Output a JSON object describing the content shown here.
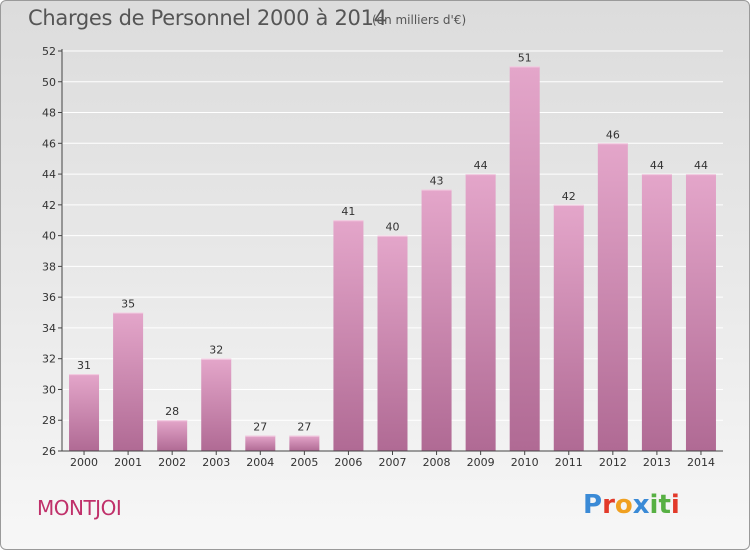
{
  "header": {
    "title": "Charges de Personnel 2000 à 2014",
    "subtitle": "(en milliers d'€)"
  },
  "commune": "MONTJOI",
  "logo": {
    "text": "Proxiti",
    "letters": [
      "P",
      "r",
      "o",
      "x",
      "i",
      "t",
      "i"
    ],
    "colors": [
      "#3a8ad6",
      "#e23a2a",
      "#f0a020",
      "#3a8ad6",
      "#57b043",
      "#57b043",
      "#e23a2a"
    ]
  },
  "colors": {
    "bar_top": "#e4a6ca",
    "bar_bottom": "#b06a94",
    "axis": "#444444",
    "grid": "#ffffff"
  },
  "chart_data": {
    "type": "bar",
    "categories": [
      "2000",
      "2001",
      "2002",
      "2003",
      "2004",
      "2005",
      "2006",
      "2007",
      "2008",
      "2009",
      "2010",
      "2011",
      "2012",
      "2013",
      "2014"
    ],
    "values": [
      31,
      35,
      28,
      32,
      27,
      27,
      41,
      40,
      43,
      44,
      51,
      42,
      46,
      44,
      44
    ],
    "ylim": [
      26,
      52
    ],
    "yticks": [
      26,
      28,
      30,
      32,
      34,
      36,
      38,
      40,
      42,
      44,
      46,
      48,
      50,
      52
    ],
    "grid": true,
    "data_labels": true
  }
}
